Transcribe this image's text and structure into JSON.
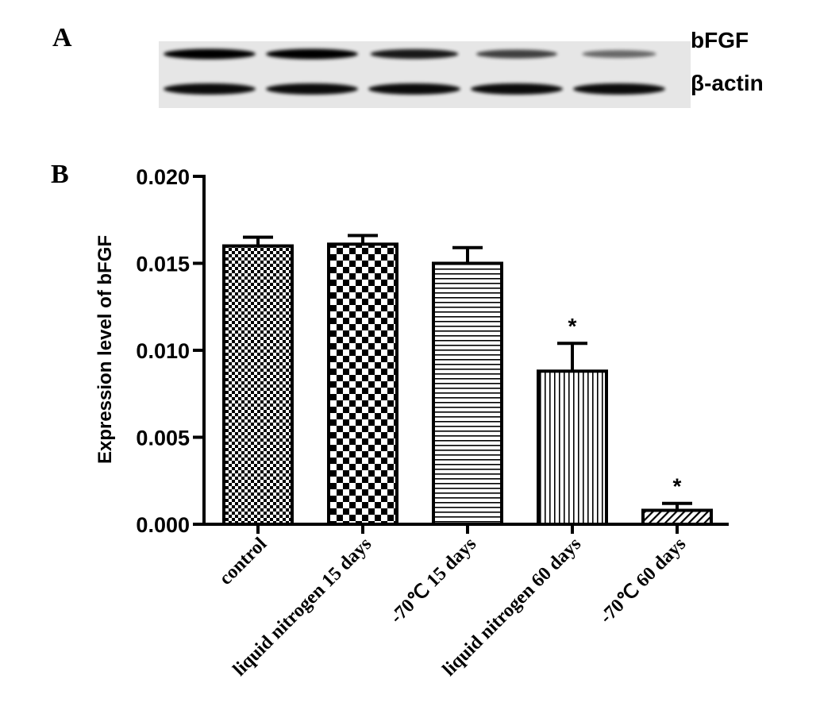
{
  "panel_a": {
    "label": "A",
    "band_labels": [
      "bFGF",
      "β-actin"
    ],
    "bands": {
      "bFGF": [
        1.0,
        1.0,
        0.85,
        0.6,
        0.35
      ],
      "beta_actin": [
        1.0,
        1.0,
        1.0,
        1.0,
        1.0
      ]
    }
  },
  "panel_b": {
    "label": "B"
  },
  "chart_data": {
    "type": "bar",
    "categories": [
      "control",
      "liquid nitrogen 15 days",
      "-70℃ 15 days",
      "liquid nitrogen 60 days",
      "-70℃ 60 days"
    ],
    "values": [
      0.016,
      0.0161,
      0.015,
      0.0088,
      0.0008
    ],
    "errors": [
      0.0005,
      0.0005,
      0.0009,
      0.0016,
      0.0004
    ],
    "annotations": [
      "",
      "",
      "",
      "*",
      "*"
    ],
    "patterns": [
      "fine-check",
      "coarse-check",
      "horizontal-lines",
      "vertical-lines",
      "diagonal-lines"
    ],
    "title": "",
    "xlabel": "",
    "ylabel": "Expression level of bFGF",
    "ylim": [
      0,
      0.02
    ],
    "yticks": [
      "0.000",
      "0.005",
      "0.010",
      "0.015",
      "0.020"
    ],
    "ytick_values": [
      0,
      0.005,
      0.01,
      0.015,
      0.02
    ],
    "grid": false,
    "legend": "none"
  }
}
